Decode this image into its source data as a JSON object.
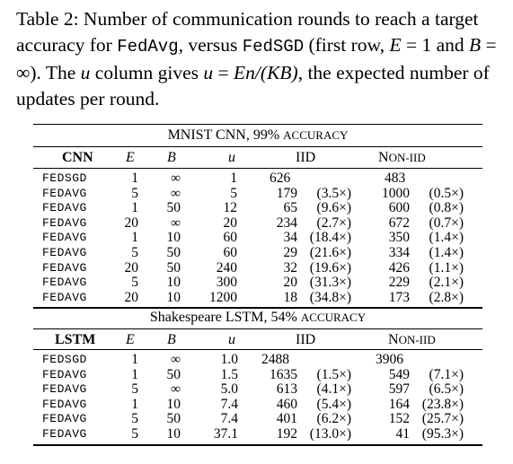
{
  "caption": {
    "lead": "Table 2: Number of communication rounds to reach a target accuracy for ",
    "code1": "FedAvg",
    "mid": ", versus ",
    "code2": "FedSGD",
    "first_row": " (first row, ",
    "e_eq": "E",
    "e_val": " = 1",
    "and_b": " and ",
    "b_eq": "B",
    "b_val": " = ∞). The ",
    "u_var": "u",
    "col_gives": " column gives ",
    "u_var2": "u",
    "eq": " = ",
    "formula": "En/(KB)",
    "tail": ", the expected number of updates per round."
  },
  "cnn_section": {
    "title_main": "MNIST CNN, 99% ",
    "title_sc": "accuracy",
    "headers": {
      "model": "CNN",
      "e": "E",
      "b": "B",
      "u": "u",
      "iid": "IID",
      "noniid_n": "N",
      "noniid_rest": "on-IID"
    },
    "rows": [
      {
        "alg": "FedSGD",
        "e": "1",
        "b": "∞",
        "u": "1",
        "iid": "626",
        "iid_x": "",
        "non": "483",
        "non_x": ""
      },
      {
        "alg": "FedAvg",
        "e": "5",
        "b": "∞",
        "u": "5",
        "iid": "179",
        "iid_x": "(3.5×)",
        "non": "1000",
        "non_x": "(0.5×)"
      },
      {
        "alg": "FedAvg",
        "e": "1",
        "b": "50",
        "u": "12",
        "iid": "65",
        "iid_x": "(9.6×)",
        "non": "600",
        "non_x": "(0.8×)"
      },
      {
        "alg": "FedAvg",
        "e": "20",
        "b": "∞",
        "u": "20",
        "iid": "234",
        "iid_x": "(2.7×)",
        "non": "672",
        "non_x": "(0.7×)"
      },
      {
        "alg": "FedAvg",
        "e": "1",
        "b": "10",
        "u": "60",
        "iid": "34",
        "iid_x": "(18.4×)",
        "non": "350",
        "non_x": "(1.4×)"
      },
      {
        "alg": "FedAvg",
        "e": "5",
        "b": "50",
        "u": "60",
        "iid": "29",
        "iid_x": "(21.6×)",
        "non": "334",
        "non_x": "(1.4×)"
      },
      {
        "alg": "FedAvg",
        "e": "20",
        "b": "50",
        "u": "240",
        "iid": "32",
        "iid_x": "(19.6×)",
        "non": "426",
        "non_x": "(1.1×)"
      },
      {
        "alg": "FedAvg",
        "e": "5",
        "b": "10",
        "u": "300",
        "iid": "20",
        "iid_x": "(31.3×)",
        "non": "229",
        "non_x": "(2.1×)"
      },
      {
        "alg": "FedAvg",
        "e": "20",
        "b": "10",
        "u": "1200",
        "iid": "18",
        "iid_x": "(34.8×)",
        "non": "173",
        "non_x": "(2.8×)"
      }
    ]
  },
  "lstm_section": {
    "title_main": "Shakespeare LSTM, 54% ",
    "title_sc": "accuracy",
    "headers": {
      "model": "LSTM",
      "e": "E",
      "b": "B",
      "u": "u",
      "iid": "IID",
      "noniid_n": "N",
      "noniid_rest": "on-IID"
    },
    "rows": [
      {
        "alg": "FedSGD",
        "e": "1",
        "b": "∞",
        "u": "1.0",
        "iid": "2488",
        "iid_x": "",
        "non": "3906",
        "non_x": ""
      },
      {
        "alg": "FedAvg",
        "e": "1",
        "b": "50",
        "u": "1.5",
        "iid": "1635",
        "iid_x": "(1.5×)",
        "non": "549",
        "non_x": "(7.1×)"
      },
      {
        "alg": "FedAvg",
        "e": "5",
        "b": "∞",
        "u": "5.0",
        "iid": "613",
        "iid_x": "(4.1×)",
        "non": "597",
        "non_x": "(6.5×)"
      },
      {
        "alg": "FedAvg",
        "e": "1",
        "b": "10",
        "u": "7.4",
        "iid": "460",
        "iid_x": "(5.4×)",
        "non": "164",
        "non_x": "(23.8×)"
      },
      {
        "alg": "FedAvg",
        "e": "5",
        "b": "50",
        "u": "7.4",
        "iid": "401",
        "iid_x": "(6.2×)",
        "non": "152",
        "non_x": "(25.7×)"
      },
      {
        "alg": "FedAvg",
        "e": "5",
        "b": "10",
        "u": "37.1",
        "iid": "192",
        "iid_x": "(13.0×)",
        "non": "41",
        "non_x": "(95.3×)"
      }
    ]
  }
}
